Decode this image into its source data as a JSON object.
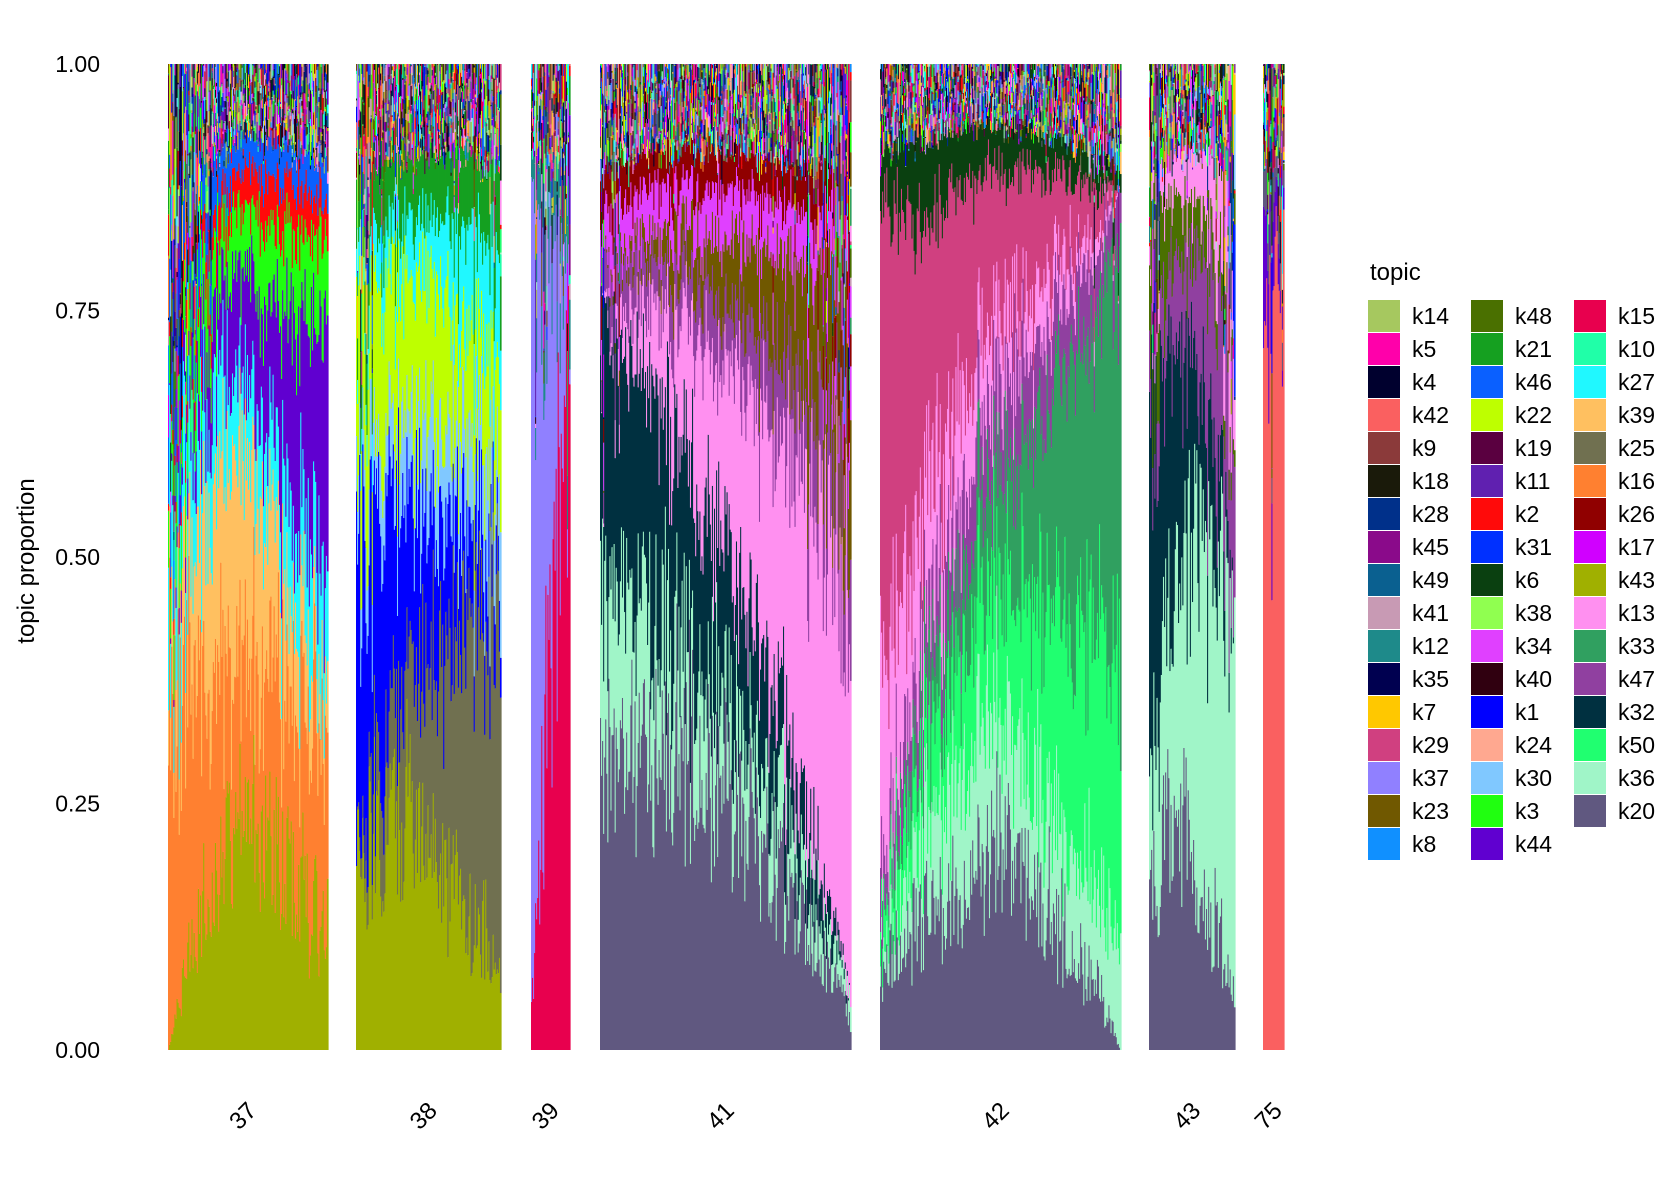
{
  "chart_data": {
    "type": "bar",
    "stacked": true,
    "ylabel": "topic proportion",
    "xlabel": "",
    "ylim": [
      0,
      1
    ],
    "yticks": [
      "0.00",
      "0.25",
      "0.50",
      "0.75",
      "1.00"
    ],
    "grid": false,
    "legend_position": "right",
    "legend_title": "topic",
    "groups": [
      {
        "label": "37",
        "n_samples": 150
      },
      {
        "label": "38",
        "n_samples": 138
      },
      {
        "label": "39",
        "n_samples": 38
      },
      {
        "label": "41",
        "n_samples": 240
      },
      {
        "label": "42",
        "n_samples": 230
      },
      {
        "label": "43",
        "n_samples": 80
      },
      {
        "label": "75",
        "n_samples": 20
      }
    ],
    "topics": [
      {
        "name": "k14",
        "color": "#A6C85F"
      },
      {
        "name": "k5",
        "color": "#FF00AA"
      },
      {
        "name": "k4",
        "color": "#00002E"
      },
      {
        "name": "k42",
        "color": "#FA6060"
      },
      {
        "name": "k9",
        "color": "#8B3A3A"
      },
      {
        "name": "k18",
        "color": "#1A1A0A"
      },
      {
        "name": "k28",
        "color": "#00308A"
      },
      {
        "name": "k45",
        "color": "#8A0A8A"
      },
      {
        "name": "k49",
        "color": "#0A6090"
      },
      {
        "name": "k41",
        "color": "#C89AB4"
      },
      {
        "name": "k12",
        "color": "#1E8A8A"
      },
      {
        "name": "k35",
        "color": "#000050"
      },
      {
        "name": "k7",
        "color": "#FFC800"
      },
      {
        "name": "k29",
        "color": "#D04080"
      },
      {
        "name": "k37",
        "color": "#9080FF"
      },
      {
        "name": "k23",
        "color": "#705800"
      },
      {
        "name": "k8",
        "color": "#1090FF"
      },
      {
        "name": "k48",
        "color": "#4A7000"
      },
      {
        "name": "k21",
        "color": "#15A020"
      },
      {
        "name": "k46",
        "color": "#0A60FF"
      },
      {
        "name": "k22",
        "color": "#BEFF00"
      },
      {
        "name": "k19",
        "color": "#5A0040"
      },
      {
        "name": "k11",
        "color": "#6020B0"
      },
      {
        "name": "k2",
        "color": "#FF0A0A"
      },
      {
        "name": "k31",
        "color": "#0030FF"
      },
      {
        "name": "k6",
        "color": "#0A4010"
      },
      {
        "name": "k38",
        "color": "#90FF50"
      },
      {
        "name": "k34",
        "color": "#E040FF"
      },
      {
        "name": "k40",
        "color": "#300010"
      },
      {
        "name": "k1",
        "color": "#0000FF"
      },
      {
        "name": "k24",
        "color": "#FFA890"
      },
      {
        "name": "k30",
        "color": "#80C8FF"
      },
      {
        "name": "k3",
        "color": "#20FF10"
      },
      {
        "name": "k44",
        "color": "#6000D0"
      },
      {
        "name": "k15",
        "color": "#E8004E"
      },
      {
        "name": "k10",
        "color": "#20FFA8"
      },
      {
        "name": "k27",
        "color": "#20F8FF"
      },
      {
        "name": "k39",
        "color": "#FFC060"
      },
      {
        "name": "k25",
        "color": "#707050"
      },
      {
        "name": "k16",
        "color": "#FF8030"
      },
      {
        "name": "k26",
        "color": "#900000"
      },
      {
        "name": "k17",
        "color": "#D000FF"
      },
      {
        "name": "k43",
        "color": "#A0B000"
      },
      {
        "name": "k13",
        "color": "#FF90F0"
      },
      {
        "name": "k33",
        "color": "#30A060"
      },
      {
        "name": "k47",
        "color": "#9040A0"
      },
      {
        "name": "k32",
        "color": "#003040"
      },
      {
        "name": "k50",
        "color": "#20FF70"
      },
      {
        "name": "k36",
        "color": "#A0F5C8"
      },
      {
        "name": "k20",
        "color": "#605880"
      }
    ],
    "group_profiles": {
      "37": [
        {
          "topic": "k43",
          "from": 0.0,
          "to": 0.12,
          "peak": 0.38,
          "at": 0.5
        },
        {
          "topic": "k16",
          "from": 0.35,
          "to": 0.22,
          "peak": 0.25,
          "at": 0.2
        },
        {
          "topic": "k39",
          "from": 0.05,
          "to": 0.05,
          "peak": 0.3,
          "at": 0.45
        },
        {
          "topic": "k27",
          "from": 0.1,
          "to": 0.15,
          "peak": 0.12,
          "at": 0.5
        },
        {
          "topic": "k44",
          "from": 0.0,
          "to": 0.3,
          "peak": 0.3,
          "at": 0.95
        },
        {
          "topic": "k3",
          "from": 0.05,
          "to": 0.1,
          "peak": 0.12,
          "at": 0.75
        },
        {
          "topic": "k2",
          "from": 0.01,
          "to": 0.04,
          "peak": 0.08,
          "at": 0.65
        },
        {
          "topic": "k46",
          "from": 0.05,
          "to": 0.04,
          "peak": 0.05,
          "at": 0.5
        }
      ],
      "38": [
        {
          "topic": "k43",
          "from": 0.2,
          "to": 0.1,
          "peak": 0.3,
          "at": 0.4
        },
        {
          "topic": "k25",
          "from": 0.0,
          "to": 0.4,
          "peak": 0.4,
          "at": 0.85
        },
        {
          "topic": "k1",
          "from": 0.3,
          "to": 0.05,
          "peak": 0.3,
          "at": 0.1
        },
        {
          "topic": "k30",
          "from": 0.05,
          "to": 0.1,
          "peak": 0.12,
          "at": 0.55
        },
        {
          "topic": "k22",
          "from": 0.15,
          "to": 0.1,
          "peak": 0.2,
          "at": 0.4
        },
        {
          "topic": "k27",
          "from": 0.03,
          "to": 0.1,
          "peak": 0.12,
          "at": 0.8
        },
        {
          "topic": "k21",
          "from": 0.05,
          "to": 0.08,
          "peak": 0.08,
          "at": 0.5
        }
      ],
      "39": [
        {
          "topic": "k15",
          "from": 0.05,
          "to": 0.8,
          "peak": 0.8,
          "at": 1.0
        },
        {
          "topic": "k37",
          "from": 0.8,
          "to": 0.02,
          "peak": 0.8,
          "at": 0.0
        },
        {
          "topic": "k12",
          "from": 0.05,
          "to": 0.05,
          "peak": 0.06,
          "at": 0.5
        }
      ],
      "41": [
        {
          "topic": "k20",
          "from": 0.3,
          "to": 0.03,
          "peak": 0.45,
          "at": 0.35
        },
        {
          "topic": "k36",
          "from": 0.18,
          "to": 0.02,
          "peak": 0.18,
          "at": 0.2
        },
        {
          "topic": "k32",
          "from": 0.28,
          "to": 0.0,
          "peak": 0.32,
          "at": 0.2
        },
        {
          "topic": "k13",
          "from": 0.0,
          "to": 0.45,
          "peak": 0.45,
          "at": 0.95
        },
        {
          "topic": "k47",
          "from": 0.05,
          "to": 0.1,
          "peak": 0.1,
          "at": 0.7
        },
        {
          "topic": "k23",
          "from": 0.0,
          "to": 0.12,
          "peak": 0.15,
          "at": 0.9
        },
        {
          "topic": "k34",
          "from": 0.05,
          "to": 0.05,
          "peak": 0.07,
          "at": 0.5
        },
        {
          "topic": "k26",
          "from": 0.04,
          "to": 0.04,
          "peak": 0.05,
          "at": 0.5
        }
      ],
      "42": [
        {
          "topic": "k20",
          "from": 0.1,
          "to": 0.0,
          "peak": 0.38,
          "at": 0.5
        },
        {
          "topic": "k36",
          "from": 0.02,
          "to": 0.1,
          "peak": 0.25,
          "at": 0.4
        },
        {
          "topic": "k50",
          "from": 0.05,
          "to": 0.3,
          "peak": 0.35,
          "at": 0.7
        },
        {
          "topic": "k33",
          "from": 0.0,
          "to": 0.42,
          "peak": 0.42,
          "at": 1.0
        },
        {
          "topic": "k47",
          "from": 0.05,
          "to": 0.05,
          "peak": 0.18,
          "at": 0.55
        },
        {
          "topic": "k13",
          "from": 0.25,
          "to": 0.0,
          "peak": 0.25,
          "at": 0.0
        },
        {
          "topic": "k29",
          "from": 0.55,
          "to": 0.0,
          "peak": 0.55,
          "at": 0.0
        },
        {
          "topic": "k6",
          "from": 0.05,
          "to": 0.02,
          "peak": 0.12,
          "at": 0.15
        }
      ],
      "43": [
        {
          "topic": "k20",
          "from": 0.15,
          "to": 0.05,
          "peak": 0.3,
          "at": 0.35
        },
        {
          "topic": "k36",
          "from": 0.1,
          "to": 0.35,
          "peak": 0.45,
          "at": 0.6
        },
        {
          "topic": "k32",
          "from": 0.3,
          "to": 0.0,
          "peak": 0.35,
          "at": 0.3
        },
        {
          "topic": "k47",
          "from": 0.05,
          "to": 0.15,
          "peak": 0.2,
          "at": 0.8
        },
        {
          "topic": "k48",
          "from": 0.08,
          "to": 0.02,
          "peak": 0.1,
          "at": 0.1
        },
        {
          "topic": "k13",
          "from": 0.02,
          "to": 0.08,
          "peak": 0.1,
          "at": 0.9
        }
      ],
      "75": [
        {
          "topic": "k42",
          "from": 0.7,
          "to": 0.85,
          "peak": 0.85,
          "at": 0.9
        },
        {
          "topic": "k44",
          "from": 0.12,
          "to": 0.02,
          "peak": 0.12,
          "at": 0.1
        },
        {
          "topic": "k20",
          "from": 0.05,
          "to": 0.02,
          "peak": 0.05,
          "at": 0.1
        }
      ]
    }
  }
}
